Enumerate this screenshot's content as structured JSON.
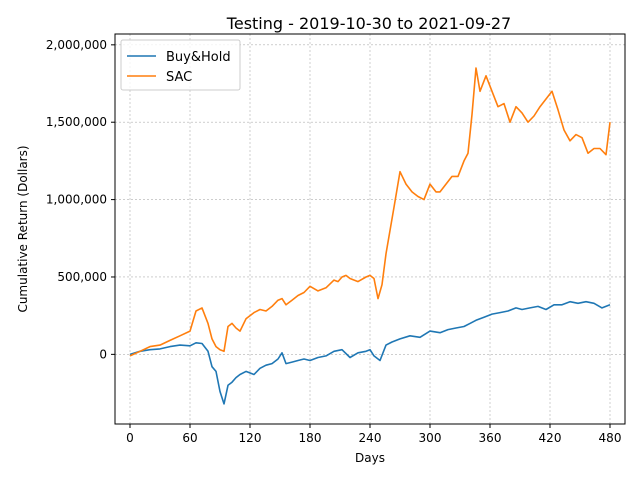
{
  "chart_data": {
    "type": "line",
    "title": "Testing - 2019-10-30 to 2021-09-27",
    "xlabel": "Days",
    "ylabel": "Cumulative Return (Dollars)",
    "xlim": [
      -15,
      495
    ],
    "ylim": [
      -450000,
      2070000
    ],
    "xticks": [
      0,
      60,
      120,
      180,
      240,
      300,
      360,
      420,
      480
    ],
    "xtick_labels": [
      "0",
      "60",
      "120",
      "180",
      "240",
      "300",
      "360",
      "420",
      "480"
    ],
    "yticks": [
      0,
      500000,
      1000000,
      1500000,
      2000000
    ],
    "ytick_labels": [
      "0",
      "500,000",
      "1,000,000",
      "1,500,000",
      "2,000,000"
    ],
    "grid": true,
    "legend_position": "top-left",
    "series": [
      {
        "name": "Buy&Hold",
        "color": "#1f77b4",
        "x": [
          0,
          10,
          20,
          30,
          40,
          50,
          60,
          66,
          72,
          78,
          82,
          86,
          90,
          94,
          98,
          102,
          106,
          110,
          116,
          124,
          130,
          136,
          142,
          148,
          152,
          156,
          162,
          168,
          174,
          180,
          188,
          196,
          204,
          212,
          220,
          228,
          236,
          240,
          244,
          250,
          256,
          262,
          270,
          280,
          290,
          300,
          310,
          318,
          326,
          334,
          340,
          346,
          354,
          362,
          370,
          378,
          386,
          392,
          400,
          408,
          416,
          424,
          432,
          440,
          448,
          456,
          464,
          472,
          480
        ],
        "y": [
          0,
          20000,
          30000,
          35000,
          50000,
          60000,
          55000,
          75000,
          70000,
          20000,
          -80000,
          -110000,
          -240000,
          -320000,
          -200000,
          -180000,
          -150000,
          -130000,
          -110000,
          -130000,
          -90000,
          -70000,
          -60000,
          -30000,
          10000,
          -60000,
          -50000,
          -40000,
          -30000,
          -40000,
          -20000,
          -10000,
          20000,
          30000,
          -20000,
          10000,
          20000,
          30000,
          -10000,
          -40000,
          60000,
          80000,
          100000,
          120000,
          110000,
          150000,
          140000,
          160000,
          170000,
          180000,
          200000,
          220000,
          240000,
          260000,
          270000,
          280000,
          300000,
          290000,
          300000,
          310000,
          290000,
          320000,
          320000,
          340000,
          330000,
          340000,
          330000,
          300000,
          320000
        ]
      },
      {
        "name": "SAC",
        "color": "#ff7f0e",
        "x": [
          0,
          10,
          20,
          30,
          40,
          50,
          60,
          66,
          72,
          78,
          82,
          86,
          90,
          94,
          98,
          102,
          106,
          110,
          116,
          124,
          130,
          136,
          142,
          148,
          152,
          156,
          162,
          168,
          174,
          180,
          188,
          196,
          204,
          208,
          212,
          216,
          220,
          228,
          236,
          240,
          244,
          248,
          252,
          256,
          260,
          264,
          270,
          276,
          282,
          288,
          294,
          300,
          306,
          310,
          316,
          322,
          328,
          334,
          338,
          342,
          346,
          350,
          356,
          362,
          368,
          374,
          380,
          386,
          392,
          398,
          404,
          410,
          416,
          422,
          428,
          434,
          440,
          446,
          452,
          458,
          464,
          470,
          476,
          480
        ],
        "y": [
          -10000,
          20000,
          50000,
          60000,
          90000,
          120000,
          150000,
          280000,
          300000,
          200000,
          100000,
          50000,
          30000,
          20000,
          180000,
          200000,
          170000,
          150000,
          230000,
          270000,
          290000,
          280000,
          310000,
          350000,
          360000,
          320000,
          350000,
          380000,
          400000,
          440000,
          410000,
          430000,
          480000,
          470000,
          500000,
          510000,
          490000,
          470000,
          500000,
          510000,
          490000,
          360000,
          450000,
          650000,
          800000,
          950000,
          1180000,
          1100000,
          1050000,
          1020000,
          1000000,
          1100000,
          1050000,
          1050000,
          1100000,
          1150000,
          1150000,
          1250000,
          1300000,
          1550000,
          1850000,
          1700000,
          1800000,
          1700000,
          1600000,
          1620000,
          1500000,
          1600000,
          1560000,
          1500000,
          1540000,
          1600000,
          1650000,
          1700000,
          1580000,
          1450000,
          1380000,
          1420000,
          1400000,
          1300000,
          1330000,
          1330000,
          1290000,
          1500000
        ]
      }
    ]
  }
}
